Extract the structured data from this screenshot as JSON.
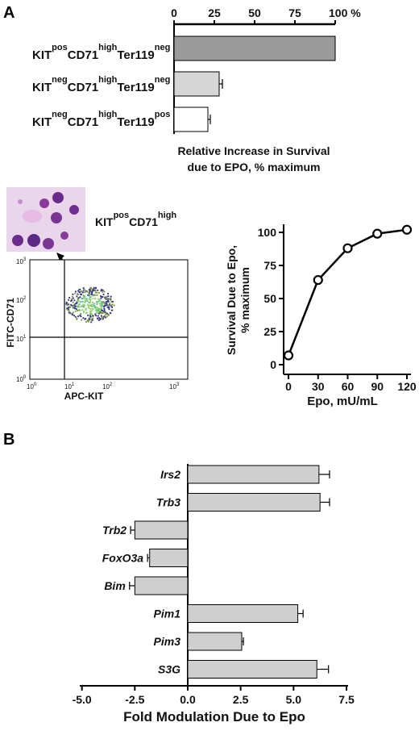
{
  "panel_a": {
    "letter": "A",
    "bar_rows": [
      {
        "base": "KIT",
        "s1": "pos",
        "mid": "CD71",
        "s2": "high",
        "end": "Ter119",
        "s3": "neg"
      },
      {
        "base": "KIT",
        "s1": "neg",
        "mid": "CD71",
        "s2": "high",
        "end": "Ter119",
        "s3": "neg"
      },
      {
        "base": "KIT",
        "s1": "neg",
        "mid": "CD71",
        "s2": "high",
        "end": "Ter119",
        "s3": "pos"
      }
    ],
    "xaxis_ticks": [
      "0",
      "25",
      "50",
      "75",
      "100 %"
    ],
    "xlabel_line1": "Relative Increase in Survival",
    "xlabel_line2": "due to EPO, % maximum",
    "micrograph_label": {
      "base": "KIT",
      "s1": "pos",
      "mid": "CD71",
      "s2": "high"
    },
    "flow": {
      "ylabel": "FITC-CD71",
      "xlabel": "APC-KIT",
      "yticks": [
        {
          "b": "10",
          "e": "3"
        },
        {
          "b": "10",
          "e": "2"
        },
        {
          "b": "10",
          "e": "1"
        },
        {
          "b": "10",
          "e": "0"
        }
      ],
      "xticks": [
        {
          "b": "10",
          "e": "0"
        },
        {
          "b": "10",
          "e": "1"
        },
        {
          "b": "10",
          "e": "2"
        },
        {
          "b": "10",
          "e": "3"
        }
      ]
    },
    "line_chart": {
      "ylabel_line1": "Survival Due to Epo,",
      "ylabel_line2": "% maximum",
      "xlabel": "Epo, mU/mL",
      "yticks": [
        "0",
        "25",
        "50",
        "75",
        "100"
      ],
      "xticks": [
        "0",
        "30",
        "60",
        "90",
        "120"
      ]
    }
  },
  "panel_b": {
    "letter": "B",
    "xlabel": "Fold Modulation Due to Epo",
    "xticks": [
      "-5.0",
      "-2.5",
      "0.0",
      "2.5",
      "5.0",
      "7.5"
    ]
  },
  "chart_data": [
    {
      "type": "bar",
      "orientation": "horizontal",
      "categories": [
        "KITposCD71highTer119neg",
        "KITnegCD71highTer119neg",
        "KITnegCD71highTer119pos"
      ],
      "values": [
        100,
        28,
        21
      ],
      "errors": [
        0,
        2,
        1.5
      ],
      "colors": [
        "#9a9a9a",
        "#d6d6d6",
        "#ffffff"
      ],
      "xlim": [
        0,
        100
      ],
      "xlabel": "Relative Increase in Survival due to EPO, % maximum"
    },
    {
      "type": "line",
      "x": [
        0,
        30,
        60,
        90,
        120
      ],
      "y": [
        7,
        64,
        88,
        99,
        102
      ],
      "xlim": [
        0,
        120
      ],
      "ylim": [
        0,
        110
      ],
      "xlabel": "Epo, mU/mL",
      "ylabel": "Survival Due to Epo, % maximum"
    },
    {
      "type": "bar",
      "orientation": "horizontal",
      "categories": [
        "Irs2",
        "Trb3",
        "Trb2",
        "FoxO3a",
        "Bim",
        "Pim1",
        "Pim3",
        "S3G"
      ],
      "values": [
        6.2,
        6.25,
        -2.5,
        -1.8,
        -2.5,
        5.2,
        2.55,
        6.1
      ],
      "errors": [
        0.5,
        0.45,
        0.2,
        0.1,
        0.25,
        0.25,
        0.08,
        0.55
      ],
      "color": "#cfcfcf",
      "xlim": [
        -5.0,
        8.0
      ],
      "xlabel": "Fold Modulation Due to Epo"
    }
  ]
}
